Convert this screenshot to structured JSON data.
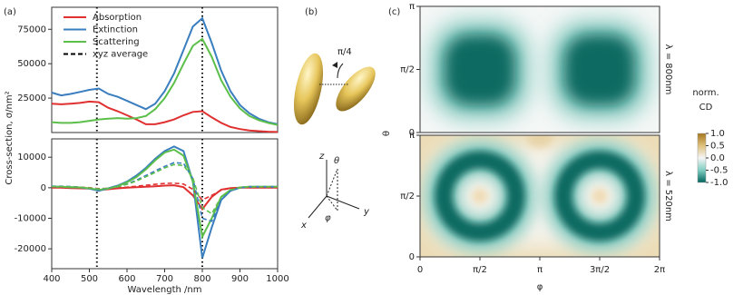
{
  "chart_data": [
    {
      "type": "line",
      "panel": "(a)",
      "ylabel": "Cross-section, σ/nm²",
      "x": [
        400,
        425,
        450,
        475,
        500,
        525,
        550,
        575,
        600,
        625,
        650,
        675,
        700,
        725,
        750,
        775,
        800,
        825,
        850,
        875,
        900,
        925,
        950,
        975,
        1000
      ],
      "xlim": [
        400,
        1000
      ],
      "ylim": [
        0,
        91000
      ],
      "yticks": [
        25000,
        50000,
        75000
      ],
      "vlines": [
        520,
        800
      ],
      "legend": "upper left",
      "series": [
        {
          "name": "Absorption",
          "color": "#e03030",
          "values": [
            21000,
            20500,
            21000,
            21500,
            22500,
            22000,
            18000,
            15500,
            12500,
            9500,
            6000,
            6000,
            7500,
            9500,
            12500,
            15000,
            15500,
            11000,
            7000,
            4000,
            2500,
            1500,
            1000,
            600,
            400
          ]
        },
        {
          "name": "Extinction",
          "color": "#3a7ebf",
          "values": [
            29000,
            27000,
            28000,
            29500,
            31000,
            32000,
            28000,
            26000,
            23000,
            20000,
            17000,
            21000,
            30000,
            43000,
            60000,
            77000,
            83000,
            65000,
            45000,
            30000,
            20000,
            14000,
            10000,
            7500,
            6000
          ]
        },
        {
          "name": "Scattering",
          "color": "#5cbf4a",
          "values": [
            7500,
            7000,
            7000,
            7500,
            8500,
            9500,
            10000,
            10500,
            10000,
            10500,
            12000,
            17000,
            25000,
            36000,
            50000,
            63000,
            68000,
            55000,
            38000,
            26000,
            17500,
            12000,
            9000,
            7000,
            5500
          ]
        }
      ],
      "legend_extra": {
        "name": "xyz average",
        "color": "#000000",
        "dash": true
      }
    },
    {
      "type": "line",
      "xlabel": "Wavelength /nm",
      "x": [
        400,
        425,
        450,
        475,
        500,
        525,
        550,
        575,
        600,
        625,
        650,
        675,
        700,
        725,
        750,
        775,
        800,
        825,
        850,
        875,
        900,
        925,
        950,
        975,
        1000
      ],
      "xlim": [
        400,
        1000
      ],
      "xticks": [
        400,
        500,
        600,
        700,
        800,
        900,
        1000
      ],
      "ylim": [
        -26500,
        16000
      ],
      "yticks": [
        -20000,
        -10000,
        0,
        10000
      ],
      "vlines": [
        520,
        800
      ],
      "series": [
        {
          "name": "Absorption",
          "color": "#e03030",
          "values": [
            0,
            0,
            -100,
            -200,
            -300,
            -700,
            -500,
            -200,
            0,
            200,
            300,
            500,
            700,
            800,
            200,
            -2500,
            -7000,
            -3000,
            -600,
            -100,
            0,
            0,
            0,
            0,
            0
          ]
        },
        {
          "name": "Extinction",
          "color": "#3a7ebf",
          "values": [
            300,
            300,
            200,
            100,
            -300,
            -1000,
            -200,
            700,
            2000,
            4000,
            6500,
            9500,
            12000,
            13500,
            12000,
            2000,
            -23000,
            -13000,
            -4000,
            -1000,
            0,
            300,
            300,
            300,
            300
          ]
        },
        {
          "name": "Scattering",
          "color": "#5cbf4a",
          "values": [
            300,
            300,
            200,
            100,
            -200,
            -700,
            -300,
            500,
            1800,
            3500,
            6000,
            9000,
            11500,
            12500,
            10500,
            2000,
            -16000,
            -10000,
            -3000,
            -700,
            100,
            300,
            300,
            300,
            300
          ]
        },
        {
          "name": "Absorption",
          "color": "#e03030",
          "dash": true,
          "values": [
            300,
            300,
            300,
            200,
            0,
            -300,
            -200,
            0,
            200,
            500,
            800,
            1100,
            1400,
            1500,
            1200,
            -500,
            -4000,
            -2500,
            -800,
            -200,
            0,
            100,
            100,
            100,
            100
          ]
        },
        {
          "name": "Extinction",
          "color": "#3a7ebf",
          "dash": true,
          "values": [
            500,
            500,
            400,
            200,
            -200,
            -600,
            -300,
            300,
            1200,
            2500,
            4000,
            5500,
            7000,
            8200,
            8000,
            3000,
            -10000,
            -11000,
            -4000,
            -1000,
            0,
            300,
            300,
            300,
            300
          ]
        },
        {
          "name": "Scattering",
          "color": "#5cbf4a",
          "dash": true,
          "values": [
            400,
            400,
            300,
            200,
            -100,
            -400,
            -200,
            300,
            1100,
            2200,
            3600,
            5000,
            6500,
            7600,
            7300,
            3200,
            -6500,
            -8500,
            -3000,
            -700,
            0,
            300,
            300,
            300,
            300
          ]
        }
      ]
    },
    {
      "type": "heatmap",
      "panel": "(c)",
      "label": "λ = 800nm",
      "xlim": [
        0,
        6.2832
      ],
      "ylim": [
        0,
        3.1416
      ],
      "yticks": [
        {
          "value": 0,
          "label": "0"
        },
        {
          "value": 1.5708,
          "label": "π/2"
        },
        {
          "value": 3.1416,
          "label": "π"
        }
      ]
    },
    {
      "type": "heatmap",
      "label": "λ = 520nm",
      "xlabel": "φ",
      "ylabel": "θ",
      "xlim": [
        0,
        6.2832
      ],
      "ylim": [
        0,
        3.1416
      ],
      "yticks": [
        {
          "value": 0,
          "label": "0"
        },
        {
          "value": 1.5708,
          "label": "π/2"
        },
        {
          "value": 3.1416,
          "label": "π"
        }
      ],
      "xticks": [
        {
          "value": 0,
          "label": "0"
        },
        {
          "value": 1.5708,
          "label": "π/2"
        },
        {
          "value": 3.1416,
          "label": "π"
        },
        {
          "value": 4.7124,
          "label": "3π/2"
        },
        {
          "value": 6.2832,
          "label": "2π"
        }
      ],
      "colorbar": {
        "title": [
          "norm.",
          "CD"
        ],
        "lim": [
          -1,
          1
        ],
        "colormap": [
          "#01665e",
          "#80cdc1",
          "#f5f5f5",
          "#dfc27d",
          "#a6761d"
        ],
        "ticks": [
          {
            "value": 1,
            "label": "1.0"
          },
          {
            "value": 0.5,
            "label": "0.5"
          },
          {
            "value": 0,
            "label": "0.0"
          },
          {
            "value": -0.5,
            "label": "-0.5"
          },
          {
            "value": -1,
            "label": "-1.0"
          }
        ]
      }
    }
  ],
  "panel_b": {
    "label": "(b)",
    "angle": "π/4",
    "z": "z",
    "theta": "θ",
    "y": "y",
    "x": "x",
    "phi": "φ"
  }
}
